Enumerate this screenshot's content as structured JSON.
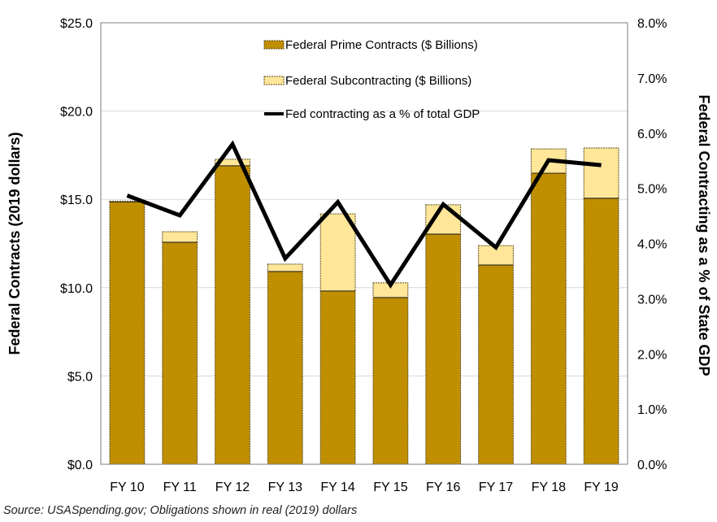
{
  "chart_data": {
    "type": "bar",
    "subtype": "stacked-bar-with-line-secondary-axis",
    "categories": [
      "FY 10",
      "FY 11",
      "FY 12",
      "FY 13",
      "FY 14",
      "FY 15",
      "FY 16",
      "FY 17",
      "FY 18",
      "FY 19"
    ],
    "series": [
      {
        "name": "Federal Prime Contracts ($ Billions)",
        "type": "bar",
        "axis": "left",
        "color": "#BF8F00",
        "values": [
          14.85,
          12.57,
          16.9,
          10.91,
          9.81,
          9.44,
          13.03,
          11.28,
          16.48,
          15.06
        ]
      },
      {
        "name": "Federal Subcontracting ($ Billions)",
        "type": "bar",
        "axis": "left",
        "color": "#FFE699",
        "values": [
          0.05,
          0.6,
          0.37,
          0.42,
          4.37,
          0.83,
          1.66,
          1.1,
          1.38,
          2.85
        ]
      },
      {
        "name": "Fed contracting as a % of total GDP",
        "type": "line",
        "axis": "right",
        "color": "#000000",
        "values": [
          4.87,
          4.51,
          5.8,
          3.73,
          4.75,
          3.25,
          4.71,
          3.93,
          5.51,
          5.42
        ]
      }
    ],
    "title": "",
    "xlabel": "",
    "ylabel": "Federal Contracts (2019 dollars)",
    "y2label": "Federal Contracting as a % of State GDP",
    "ylim": [
      0,
      25
    ],
    "y2lim": [
      0,
      8
    ],
    "yticks": [
      "$0.0",
      "$5.0",
      "$10.0",
      "$15.0",
      "$20.0",
      "$25.0"
    ],
    "ytick_values": [
      0,
      5,
      10,
      15,
      20,
      25
    ],
    "y2ticks": [
      "0.0%",
      "1.0%",
      "2.0%",
      "3.0%",
      "4.0%",
      "5.0%",
      "6.0%",
      "7.0%",
      "8.0%"
    ],
    "y2tick_values": [
      0,
      1,
      2,
      3,
      4,
      5,
      6,
      7,
      8
    ],
    "grid": true,
    "legend_position": "top-center-inside",
    "stacked": true
  },
  "source_note": "Source: USASpending.gov; Obligations shown in real (2019) dollars"
}
